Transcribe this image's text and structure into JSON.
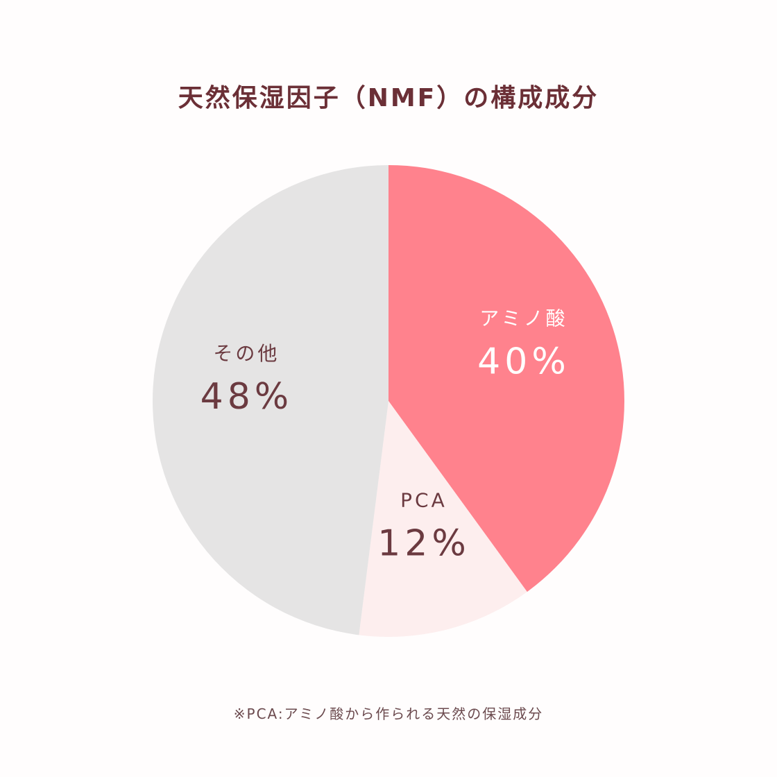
{
  "title": "天然保湿因子（NMF）の構成成分",
  "footnote": "※PCA:アミノ酸から作られる天然の保湿成分",
  "chart_data": {
    "type": "pie",
    "title": "天然保湿因子（NMF）の構成成分",
    "slices": [
      {
        "label": "アミノ酸",
        "value": 40,
        "value_label": "40%",
        "color": "#ff828d",
        "text_color": "#ffffff"
      },
      {
        "label": "PCA",
        "value": 12,
        "value_label": "12%",
        "color": "#fdeeee",
        "text_color": "#6b3a40"
      },
      {
        "label": "その他",
        "value": 48,
        "value_label": "48%",
        "color": "#e5e4e4",
        "text_color": "#6b3a40"
      }
    ],
    "start": "top",
    "direction": "clockwise"
  }
}
